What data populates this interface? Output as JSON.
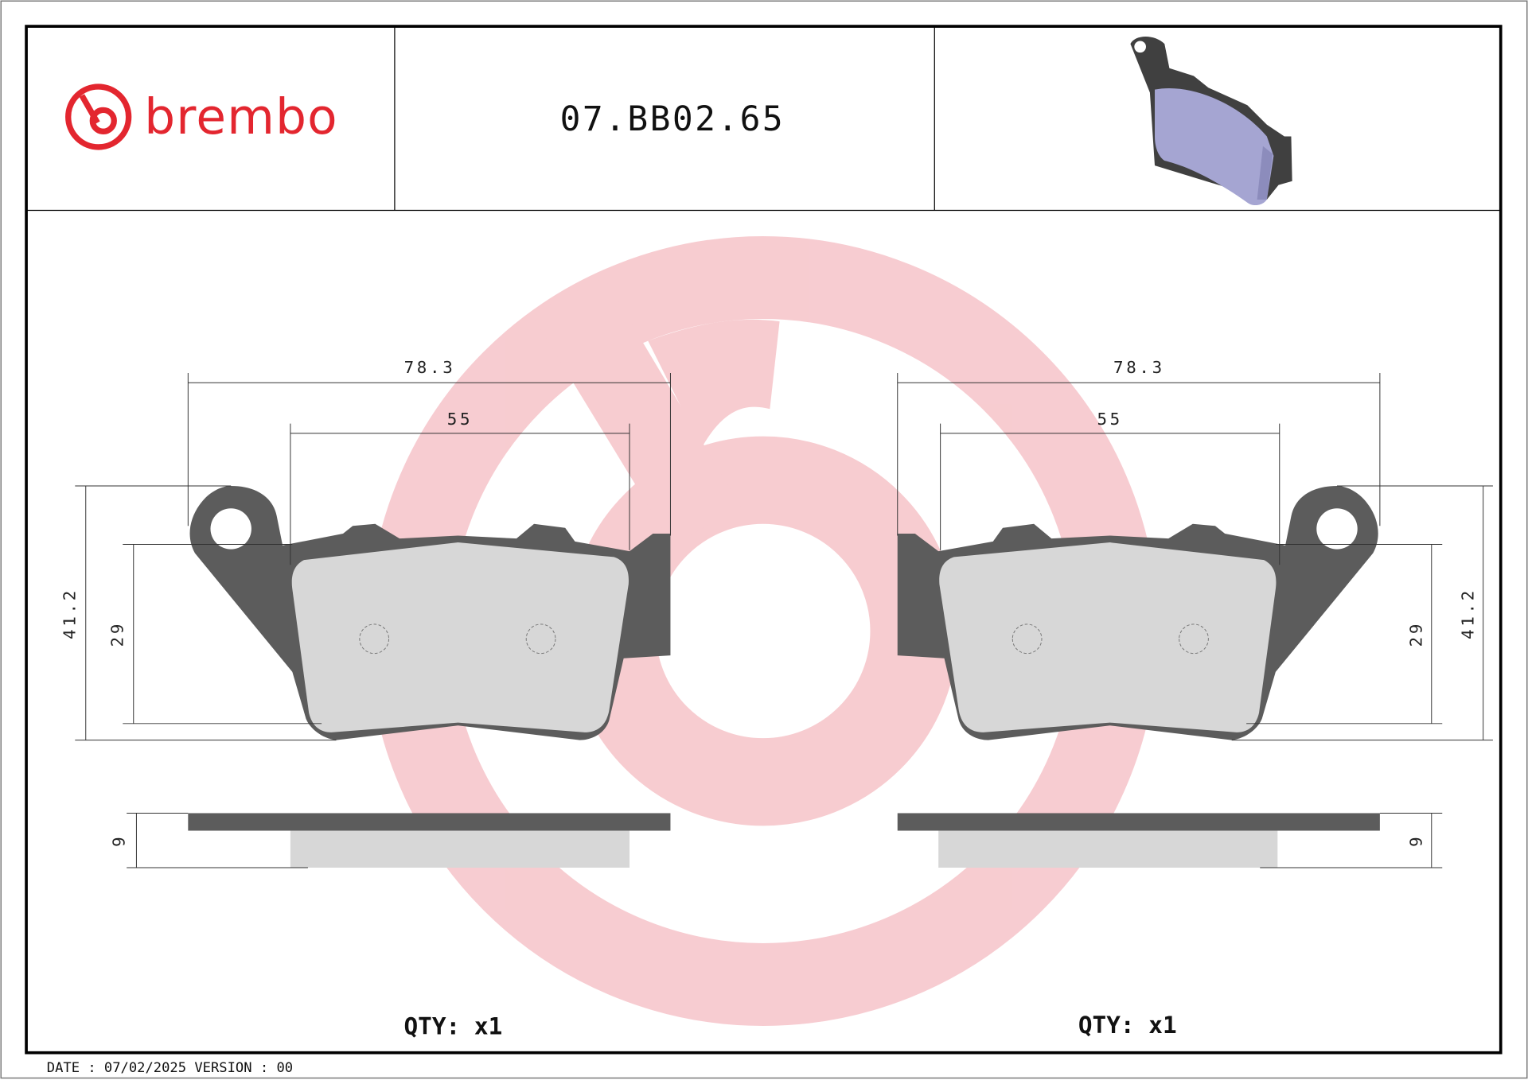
{
  "header": {
    "brand": "brembo",
    "part_number": "07.BB02.65",
    "brand_color": "#e3262f"
  },
  "views": {
    "left": {
      "width_overall": "78.3",
      "width_pad": "55",
      "height_overall": "41.2",
      "height_pad": "29",
      "thickness": "9",
      "qty": "QTY: x1"
    },
    "right": {
      "width_overall": "78.3",
      "width_pad": "55",
      "height_overall": "41.2",
      "height_pad": "29",
      "thickness": "9",
      "qty": "QTY: x1"
    }
  },
  "colors": {
    "backplate": "#5c5c5c",
    "friction": "#d7d7d7",
    "watermark": "#f2b8bd",
    "render_pad": "#a5a5d2"
  },
  "footer": {
    "text": "DATE : 07/02/2025 VERSION : 00"
  }
}
